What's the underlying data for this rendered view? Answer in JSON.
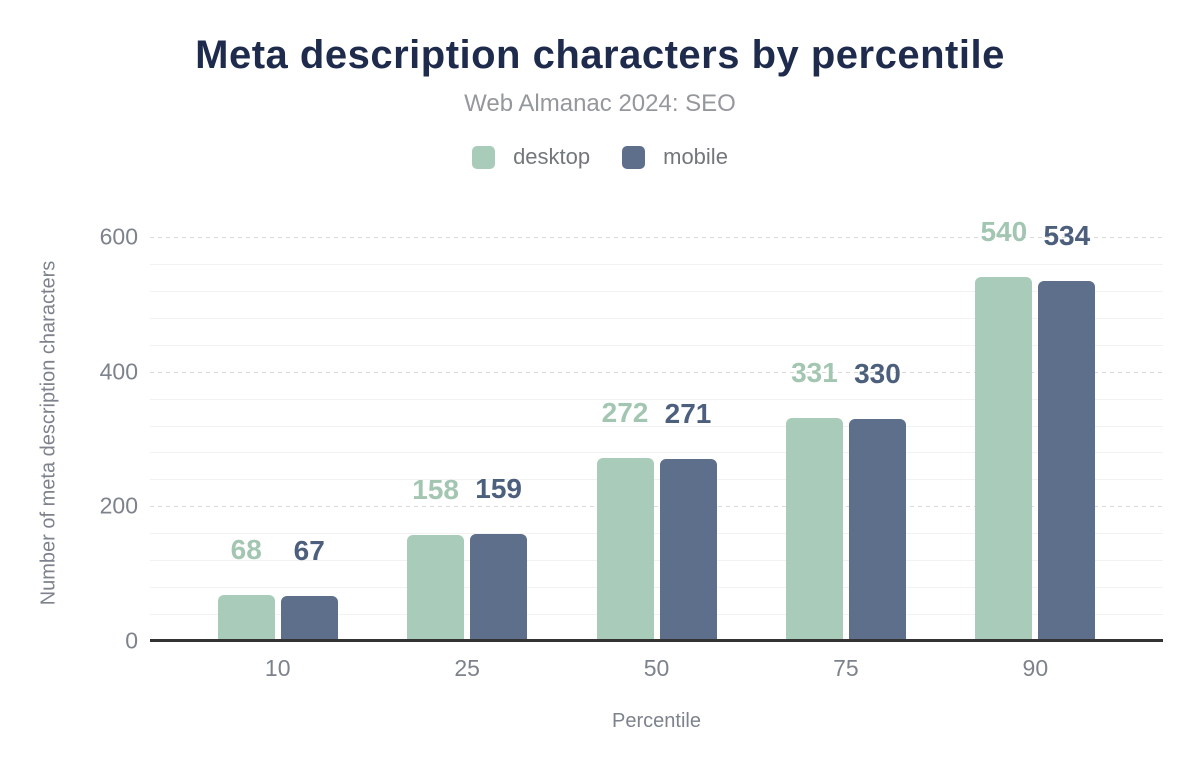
{
  "chart_data": {
    "type": "bar",
    "title": "Meta description characters by percentile",
    "subtitle": "Web Almanac 2024: SEO",
    "xlabel": "Percentile",
    "ylabel": "Number of meta description characters",
    "categories": [
      "10",
      "25",
      "50",
      "75",
      "90"
    ],
    "series": [
      {
        "name": "desktop",
        "color": "#a9cbb9",
        "label_color": "#a3c6b2",
        "values": [
          68,
          158,
          272,
          331,
          540
        ]
      },
      {
        "name": "mobile",
        "color": "#5e6f8c",
        "label_color": "#4c5f7d",
        "values": [
          67,
          159,
          271,
          330,
          534
        ]
      }
    ],
    "ylim": [
      0,
      600
    ],
    "yticks": [
      0,
      200,
      400,
      600
    ],
    "major_step": 200,
    "minor_step": 40,
    "grid": true,
    "legend_position": "top",
    "colors": {
      "title": "#1e2b4c",
      "subtitle": "#94989d",
      "axis_text": "#7d828c",
      "legend_text": "#73777c",
      "baseline": "#333333",
      "major_grid": "#d9d9d9",
      "minor_grid": "#f2f2f2",
      "background": "#ffffff"
    }
  }
}
